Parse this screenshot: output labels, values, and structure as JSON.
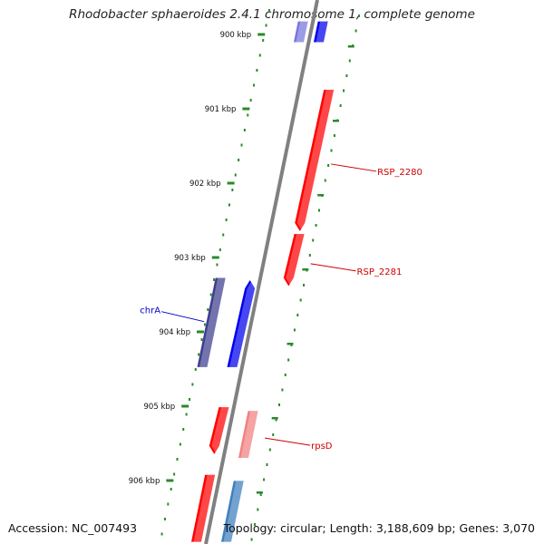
{
  "title": "Rhodobacter sphaeroides 2.4.1 chromosome 1, complete genome",
  "footer": {
    "accession": "Accession: NC_007493",
    "stats": "Topology: circular; Length: 3,188,609 bp; Genes: 3,070"
  },
  "scale": {
    "ticks": [
      {
        "label": "900 kbp",
        "kbp": 900
      },
      {
        "label": "901 kbp",
        "kbp": 901
      },
      {
        "label": "902 kbp",
        "kbp": 902
      },
      {
        "label": "903 kbp",
        "kbp": 903
      },
      {
        "label": "904 kbp",
        "kbp": 904
      },
      {
        "label": "905 kbp",
        "kbp": 905
      },
      {
        "label": "906 kbp",
        "kbp": 906
      }
    ]
  },
  "genes": [
    {
      "label": "",
      "color": "#7777dd",
      "start_kbp": 899.8,
      "end_kbp": 900.08,
      "lane": -1,
      "arrow": "none"
    },
    {
      "label": "",
      "color": "#0000ee",
      "start_kbp": 899.8,
      "end_kbp": 900.08,
      "lane": 1,
      "arrow": "none"
    },
    {
      "label": "RSP_2280",
      "color": "#ff0000",
      "label_color": "#cc0000",
      "start_kbp": 900.72,
      "end_kbp": 902.62,
      "lane": 3,
      "arrow": "down",
      "label_side": "right"
    },
    {
      "label": "RSP_2281",
      "color": "#ff0000",
      "label_color": "#cc0000",
      "start_kbp": 902.66,
      "end_kbp": 903.36,
      "lane": 3,
      "arrow": "down",
      "label_side": "right"
    },
    {
      "label": "chrA",
      "color": "#3d3d8f",
      "label_color": "#0000cc",
      "start_kbp": 903.25,
      "end_kbp": 904.45,
      "lane": -4,
      "arrow": "none",
      "label_side": "left"
    },
    {
      "label": "",
      "color": "#0000ee",
      "start_kbp": 903.28,
      "end_kbp": 904.45,
      "lane": -1,
      "arrow": "up"
    },
    {
      "label": "",
      "color": "#ff0000",
      "start_kbp": 904.99,
      "end_kbp": 905.62,
      "lane": -1,
      "arrow": "down"
    },
    {
      "label": "rpsD",
      "color": "#f28080",
      "label_color": "#cc0000",
      "start_kbp": 905.04,
      "end_kbp": 905.67,
      "lane": 2,
      "arrow": "none",
      "label_side": "right"
    },
    {
      "label": "",
      "color": "#ff0000",
      "start_kbp": 905.9,
      "end_kbp": 906.8,
      "lane": -1,
      "arrow": "none"
    },
    {
      "label": "",
      "color": "#3e7fbf",
      "start_kbp": 905.98,
      "end_kbp": 906.8,
      "lane": 2,
      "arrow": "none"
    }
  ]
}
